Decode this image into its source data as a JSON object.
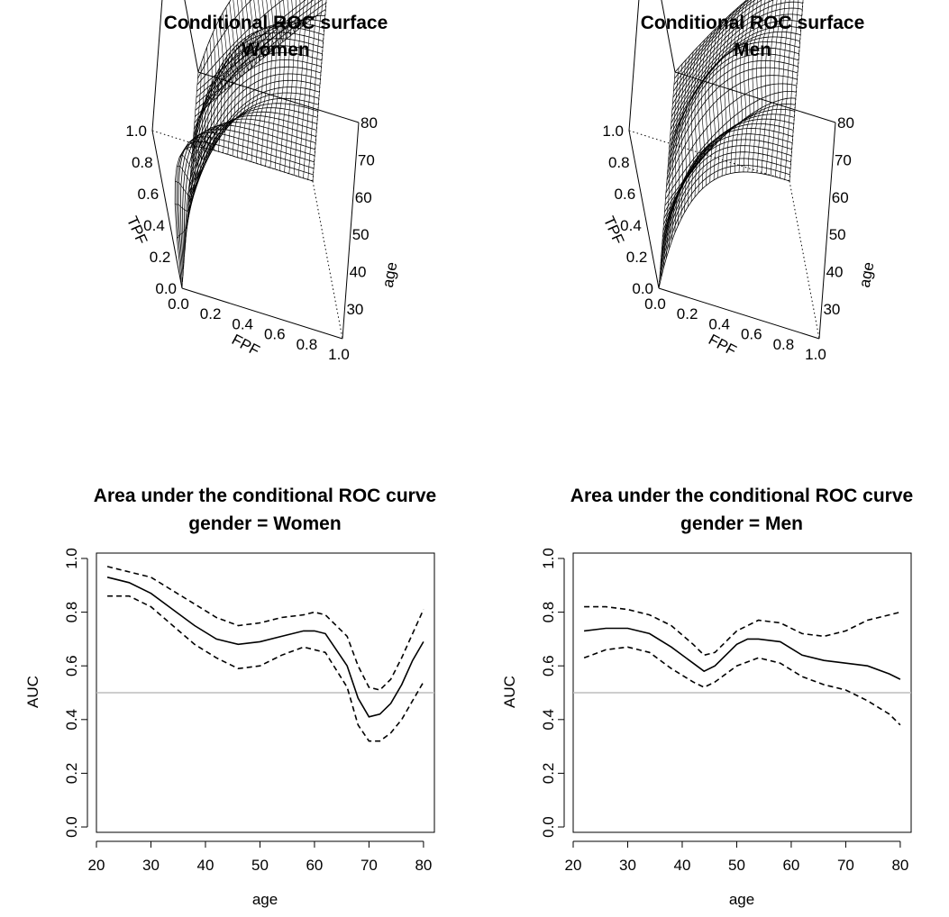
{
  "chart_data": [
    {
      "type": "surface",
      "title": "Conditional ROC surface",
      "subtitle": "Women",
      "xlabel": "FPF",
      "ylabel": "age",
      "zlabel": "TPF",
      "xticks": [
        "0.0",
        "0.2",
        "0.4",
        "0.6",
        "0.8",
        "1.0"
      ],
      "yticks": [
        "30",
        "40",
        "50",
        "60",
        "70",
        "80"
      ],
      "zticks": [
        "0.0",
        "0.2",
        "0.4",
        "0.6",
        "0.8",
        "1.0"
      ],
      "xlim": [
        0,
        1
      ],
      "ylim": [
        22,
        80
      ],
      "zlim": [
        0,
        1
      ],
      "auc_profile": {
        "age": [
          22,
          26,
          30,
          34,
          38,
          42,
          46,
          50,
          54,
          58,
          62,
          66,
          68,
          70,
          72,
          74,
          76,
          78,
          80
        ],
        "auc": [
          0.93,
          0.91,
          0.87,
          0.81,
          0.75,
          0.7,
          0.68,
          0.69,
          0.71,
          0.73,
          0.72,
          0.6,
          0.48,
          0.41,
          0.42,
          0.46,
          0.53,
          0.62,
          0.69
        ]
      }
    },
    {
      "type": "surface",
      "title": "Conditional ROC surface",
      "subtitle": "Men",
      "xlabel": "FPF",
      "ylabel": "age",
      "zlabel": "TPF",
      "xticks": [
        "0.0",
        "0.2",
        "0.4",
        "0.6",
        "0.8",
        "1.0"
      ],
      "yticks": [
        "30",
        "40",
        "50",
        "60",
        "70",
        "80"
      ],
      "zticks": [
        "0.0",
        "0.2",
        "0.4",
        "0.6",
        "0.8",
        "1.0"
      ],
      "xlim": [
        0,
        1
      ],
      "ylim": [
        22,
        80
      ],
      "zlim": [
        0,
        1
      ],
      "auc_profile": {
        "age": [
          22,
          26,
          30,
          34,
          38,
          42,
          44,
          46,
          50,
          54,
          58,
          62,
          66,
          70,
          74,
          78,
          80
        ],
        "auc": [
          0.73,
          0.74,
          0.74,
          0.72,
          0.67,
          0.61,
          0.58,
          0.6,
          0.68,
          0.7,
          0.69,
          0.64,
          0.62,
          0.61,
          0.6,
          0.57,
          0.55
        ]
      }
    },
    {
      "type": "line",
      "title": "Area under the conditional ROC curve",
      "subtitle": "gender = Women",
      "xlabel": "age",
      "ylabel": "AUC",
      "xlim": [
        20,
        82
      ],
      "ylim": [
        -0.02,
        1.02
      ],
      "xticks": [
        20,
        30,
        40,
        50,
        60,
        70,
        80
      ],
      "yticks": [
        0.0,
        0.2,
        0.4,
        0.6,
        0.8,
        1.0
      ],
      "ytick_labels": [
        "0.0",
        "0.2",
        "0.4",
        "0.6",
        "0.8",
        "1.0"
      ],
      "reference_line": 0.5,
      "reference_color": "#bebebe",
      "series": [
        {
          "style": "solid",
          "x": [
            22,
            26,
            30,
            34,
            38,
            42,
            46,
            50,
            54,
            58,
            60,
            62,
            66,
            68,
            70,
            72,
            74,
            76,
            78,
            80
          ],
          "y": [
            0.93,
            0.91,
            0.87,
            0.81,
            0.75,
            0.7,
            0.68,
            0.69,
            0.71,
            0.73,
            0.73,
            0.72,
            0.6,
            0.48,
            0.41,
            0.42,
            0.46,
            0.53,
            0.62,
            0.69
          ]
        },
        {
          "style": "dashed",
          "x": [
            22,
            26,
            30,
            34,
            38,
            42,
            46,
            50,
            54,
            58,
            60,
            62,
            66,
            68,
            70,
            72,
            74,
            76,
            78,
            80
          ],
          "y": [
            0.97,
            0.95,
            0.93,
            0.88,
            0.83,
            0.78,
            0.75,
            0.76,
            0.78,
            0.79,
            0.8,
            0.79,
            0.71,
            0.6,
            0.52,
            0.51,
            0.55,
            0.63,
            0.72,
            0.81
          ]
        },
        {
          "style": "dashed",
          "x": [
            22,
            26,
            30,
            34,
            38,
            42,
            46,
            50,
            54,
            58,
            60,
            62,
            66,
            68,
            70,
            72,
            74,
            76,
            78,
            80
          ],
          "y": [
            0.86,
            0.86,
            0.82,
            0.75,
            0.68,
            0.63,
            0.59,
            0.6,
            0.64,
            0.67,
            0.66,
            0.65,
            0.52,
            0.38,
            0.32,
            0.32,
            0.35,
            0.4,
            0.47,
            0.54
          ]
        }
      ]
    },
    {
      "type": "line",
      "title": "Area under the conditional ROC curve",
      "subtitle": "gender = Men",
      "xlabel": "age",
      "ylabel": "AUC",
      "xlim": [
        20,
        82
      ],
      "ylim": [
        -0.02,
        1.02
      ],
      "xticks": [
        20,
        30,
        40,
        50,
        60,
        70,
        80
      ],
      "yticks": [
        0.0,
        0.2,
        0.4,
        0.6,
        0.8,
        1.0
      ],
      "ytick_labels": [
        "0.0",
        "0.2",
        "0.4",
        "0.6",
        "0.8",
        "1.0"
      ],
      "reference_line": 0.5,
      "reference_color": "#bebebe",
      "series": [
        {
          "style": "solid",
          "x": [
            22,
            26,
            30,
            34,
            38,
            42,
            44,
            46,
            50,
            52,
            54,
            58,
            62,
            66,
            70,
            74,
            78,
            80
          ],
          "y": [
            0.73,
            0.74,
            0.74,
            0.72,
            0.67,
            0.61,
            0.58,
            0.6,
            0.68,
            0.7,
            0.7,
            0.69,
            0.64,
            0.62,
            0.61,
            0.6,
            0.57,
            0.55
          ]
        },
        {
          "style": "dashed",
          "x": [
            22,
            26,
            30,
            34,
            38,
            42,
            44,
            46,
            50,
            54,
            58,
            62,
            66,
            70,
            74,
            78,
            80
          ],
          "y": [
            0.82,
            0.82,
            0.81,
            0.79,
            0.75,
            0.68,
            0.64,
            0.65,
            0.73,
            0.77,
            0.76,
            0.72,
            0.71,
            0.73,
            0.77,
            0.79,
            0.8
          ]
        },
        {
          "style": "dashed",
          "x": [
            22,
            26,
            30,
            34,
            38,
            42,
            44,
            46,
            50,
            54,
            58,
            62,
            66,
            70,
            74,
            78,
            80
          ],
          "y": [
            0.63,
            0.66,
            0.67,
            0.65,
            0.59,
            0.54,
            0.52,
            0.54,
            0.6,
            0.63,
            0.61,
            0.56,
            0.53,
            0.51,
            0.47,
            0.42,
            0.38
          ]
        }
      ]
    }
  ]
}
